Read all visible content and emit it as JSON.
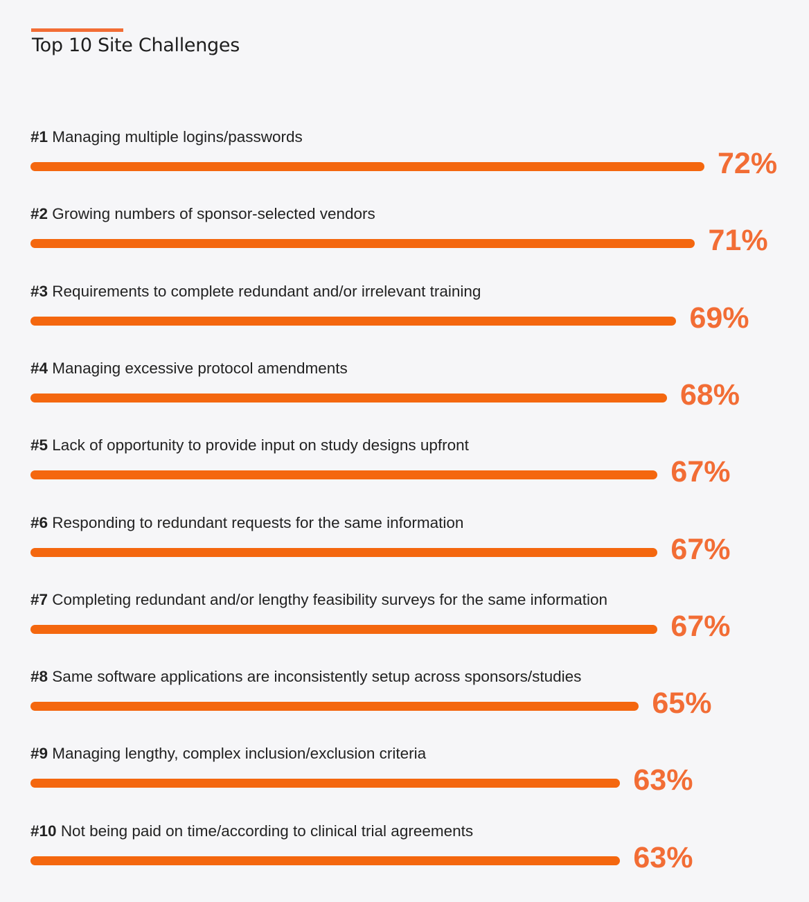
{
  "chart_data": {
    "type": "bar",
    "orientation": "horizontal",
    "title": "Top 10 Site Challenges",
    "xlabel": "",
    "ylabel": "",
    "xlim": [
      0,
      72
    ],
    "grid": false,
    "items": [
      {
        "rank": "#1",
        "label": "Managing multiple logins/passwords",
        "value": 72,
        "value_label": "72%"
      },
      {
        "rank": "#2",
        "label": "Growing numbers of sponsor-selected vendors",
        "value": 71,
        "value_label": "71%"
      },
      {
        "rank": "#3",
        "label": "Requirements to complete redundant and/or irrelevant training",
        "value": 69,
        "value_label": "69%"
      },
      {
        "rank": "#4",
        "label": "Managing excessive protocol amendments",
        "value": 68,
        "value_label": "68%"
      },
      {
        "rank": "#5",
        "label": "Lack of opportunity to provide input on study designs upfront",
        "value": 67,
        "value_label": "67%"
      },
      {
        "rank": "#6",
        "label": "Responding to redundant requests for the same information",
        "value": 67,
        "value_label": "67%"
      },
      {
        "rank": "#7",
        "label": "Completing redundant and/or lengthy feasibility surveys for the same information",
        "value": 67,
        "value_label": "67%"
      },
      {
        "rank": "#8",
        "label": "Same software applications are inconsistently setup across sponsors/studies",
        "value": 65,
        "value_label": "65%"
      },
      {
        "rank": "#9",
        "label": "Managing lengthy, complex inclusion/exclusion criteria",
        "value": 63,
        "value_label": "63%"
      },
      {
        "rank": "#10",
        "label": "Not being paid on time/according to clinical trial agreements",
        "value": 63,
        "value_label": "63%"
      }
    ],
    "colors": {
      "bar": "#f4670f",
      "value_label": "#f26d35",
      "accent": "#f26d35"
    }
  }
}
